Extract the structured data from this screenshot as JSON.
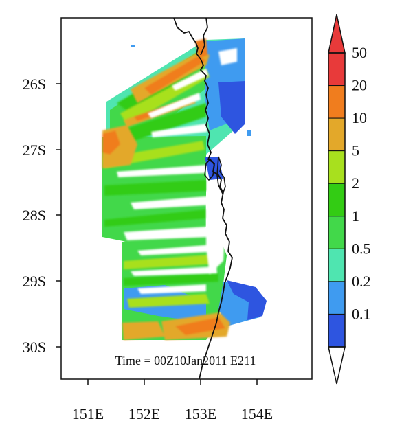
{
  "map": {
    "annotation": "Time = 00Z10Jan2011 E211",
    "x_ticks": [
      "151E",
      "152E",
      "153E",
      "154E"
    ],
    "y_ticks": [
      "26S",
      "27S",
      "28S",
      "29S",
      "30S"
    ],
    "lon_range": [
      150.55,
      155.0
    ],
    "lat_range": [
      -30.48,
      -25.0
    ],
    "coastline_color": "#111111"
  },
  "colorbar": {
    "labels": [
      "0.1",
      "0.2",
      "0.5",
      "1",
      "2",
      "5",
      "10",
      "20",
      "50"
    ],
    "colors": [
      "#2e55e0",
      "#3f9bf0",
      "#4fe5b0",
      "#42d84a",
      "#33cc14",
      "#a8e01e",
      "#e3a82a",
      "#f07d1e",
      "#e83a3a"
    ],
    "extend_low_color": "#ffffff",
    "extend_high_color": "#e83a3a"
  }
}
